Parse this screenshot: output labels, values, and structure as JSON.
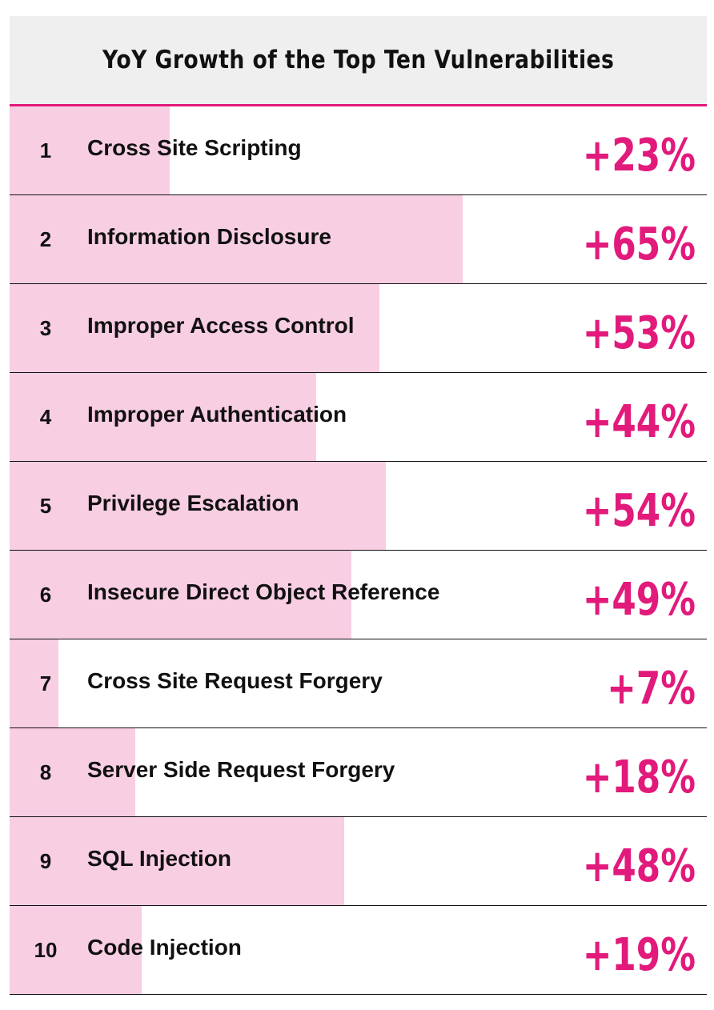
{
  "chart_data": {
    "type": "bar",
    "title": "YoY Growth of the Top Ten Vulnerabilities",
    "unit": "%",
    "xlim": [
      0,
      100
    ],
    "colors": {
      "accent": "#e11a7b",
      "bar": "#f8cee3",
      "header_bg": "#efefef"
    },
    "rows": [
      {
        "rank": "1",
        "name": "Cross Site Scripting",
        "value": 23,
        "label": "+23%"
      },
      {
        "rank": "2",
        "name": "Information Disclosure",
        "value": 65,
        "label": "+65%"
      },
      {
        "rank": "3",
        "name": "Improper Access Control",
        "value": 53,
        "label": "+53%"
      },
      {
        "rank": "4",
        "name": "Improper Authentication",
        "value": 44,
        "label": "+44%"
      },
      {
        "rank": "5",
        "name": "Privilege Escalation",
        "value": 54,
        "label": "+54%"
      },
      {
        "rank": "6",
        "name": "Insecure Direct Object Reference",
        "value": 49,
        "label": "+49%"
      },
      {
        "rank": "7",
        "name": "Cross Site Request Forgery",
        "value": 7,
        "label": "+7%"
      },
      {
        "rank": "8",
        "name": "Server Side Request Forgery",
        "value": 18,
        "label": "+18%"
      },
      {
        "rank": "9",
        "name": "SQL Injection",
        "value": 48,
        "label": "+48%"
      },
      {
        "rank": "10",
        "name": "Code Injection",
        "value": 19,
        "label": "+19%"
      }
    ]
  }
}
